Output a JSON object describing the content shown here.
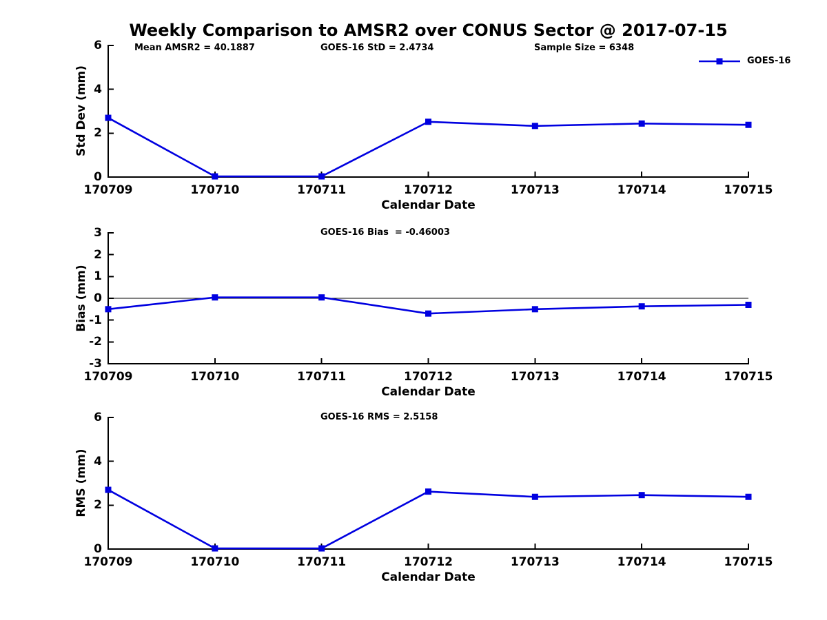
{
  "page": {
    "background": "#ffffff",
    "text_color": "#000000",
    "axis_color": "#000000"
  },
  "title": "Weekly Comparison to AMSR2 over CONUS Sector @ 2017-07-15",
  "legend": {
    "label": "GOES-16",
    "color": "#0000e0",
    "marker": "filled-square",
    "position": "top-right-of-first-panel"
  },
  "chart_data": [
    {
      "type": "line",
      "panel": "std-dev",
      "ylabel": "Std Dev (mm)",
      "xlabel": "Calendar Date",
      "ylim": [
        0,
        6
      ],
      "yticks": [
        0,
        2,
        4,
        6
      ],
      "grid": false,
      "legend_position": "top-right",
      "zero_line": false,
      "annotations": [
        "Mean AMSR2 = 40.1887",
        "GOES-16 StD = 2.4734",
        "Sample Size = 6348"
      ],
      "categories": [
        "170709",
        "170710",
        "170711",
        "170712",
        "170713",
        "170714",
        "170715"
      ],
      "series": [
        {
          "name": "GOES-16",
          "color": "#0000e0",
          "marker": "square",
          "values": [
            2.7,
            0.03,
            0.03,
            2.52,
            2.33,
            2.44,
            2.38
          ]
        }
      ]
    },
    {
      "type": "line",
      "panel": "bias",
      "ylabel": "Bias (mm)",
      "xlabel": "Calendar Date",
      "ylim": [
        -3,
        3
      ],
      "yticks": [
        -3,
        -2,
        -1,
        0,
        1,
        2,
        3
      ],
      "grid": false,
      "legend_position": "none",
      "zero_line": true,
      "annotations": [
        "GOES-16 Bias  = -0.46003"
      ],
      "categories": [
        "170709",
        "170710",
        "170711",
        "170712",
        "170713",
        "170714",
        "170715"
      ],
      "series": [
        {
          "name": "GOES-16",
          "color": "#0000e0",
          "marker": "square",
          "values": [
            -0.5,
            0.04,
            0.04,
            -0.7,
            -0.5,
            -0.37,
            -0.3
          ]
        }
      ]
    },
    {
      "type": "line",
      "panel": "rms",
      "ylabel": "RMS (mm)",
      "xlabel": "Calendar Date",
      "ylim": [
        0,
        6
      ],
      "yticks": [
        0,
        2,
        4,
        6
      ],
      "grid": false,
      "legend_position": "none",
      "zero_line": false,
      "annotations": [
        "GOES-16 RMS = 2.5158"
      ],
      "categories": [
        "170709",
        "170710",
        "170711",
        "170712",
        "170713",
        "170714",
        "170715"
      ],
      "series": [
        {
          "name": "GOES-16",
          "color": "#0000e0",
          "marker": "square",
          "values": [
            2.7,
            0.03,
            0.03,
            2.62,
            2.38,
            2.46,
            2.38
          ]
        }
      ]
    }
  ]
}
